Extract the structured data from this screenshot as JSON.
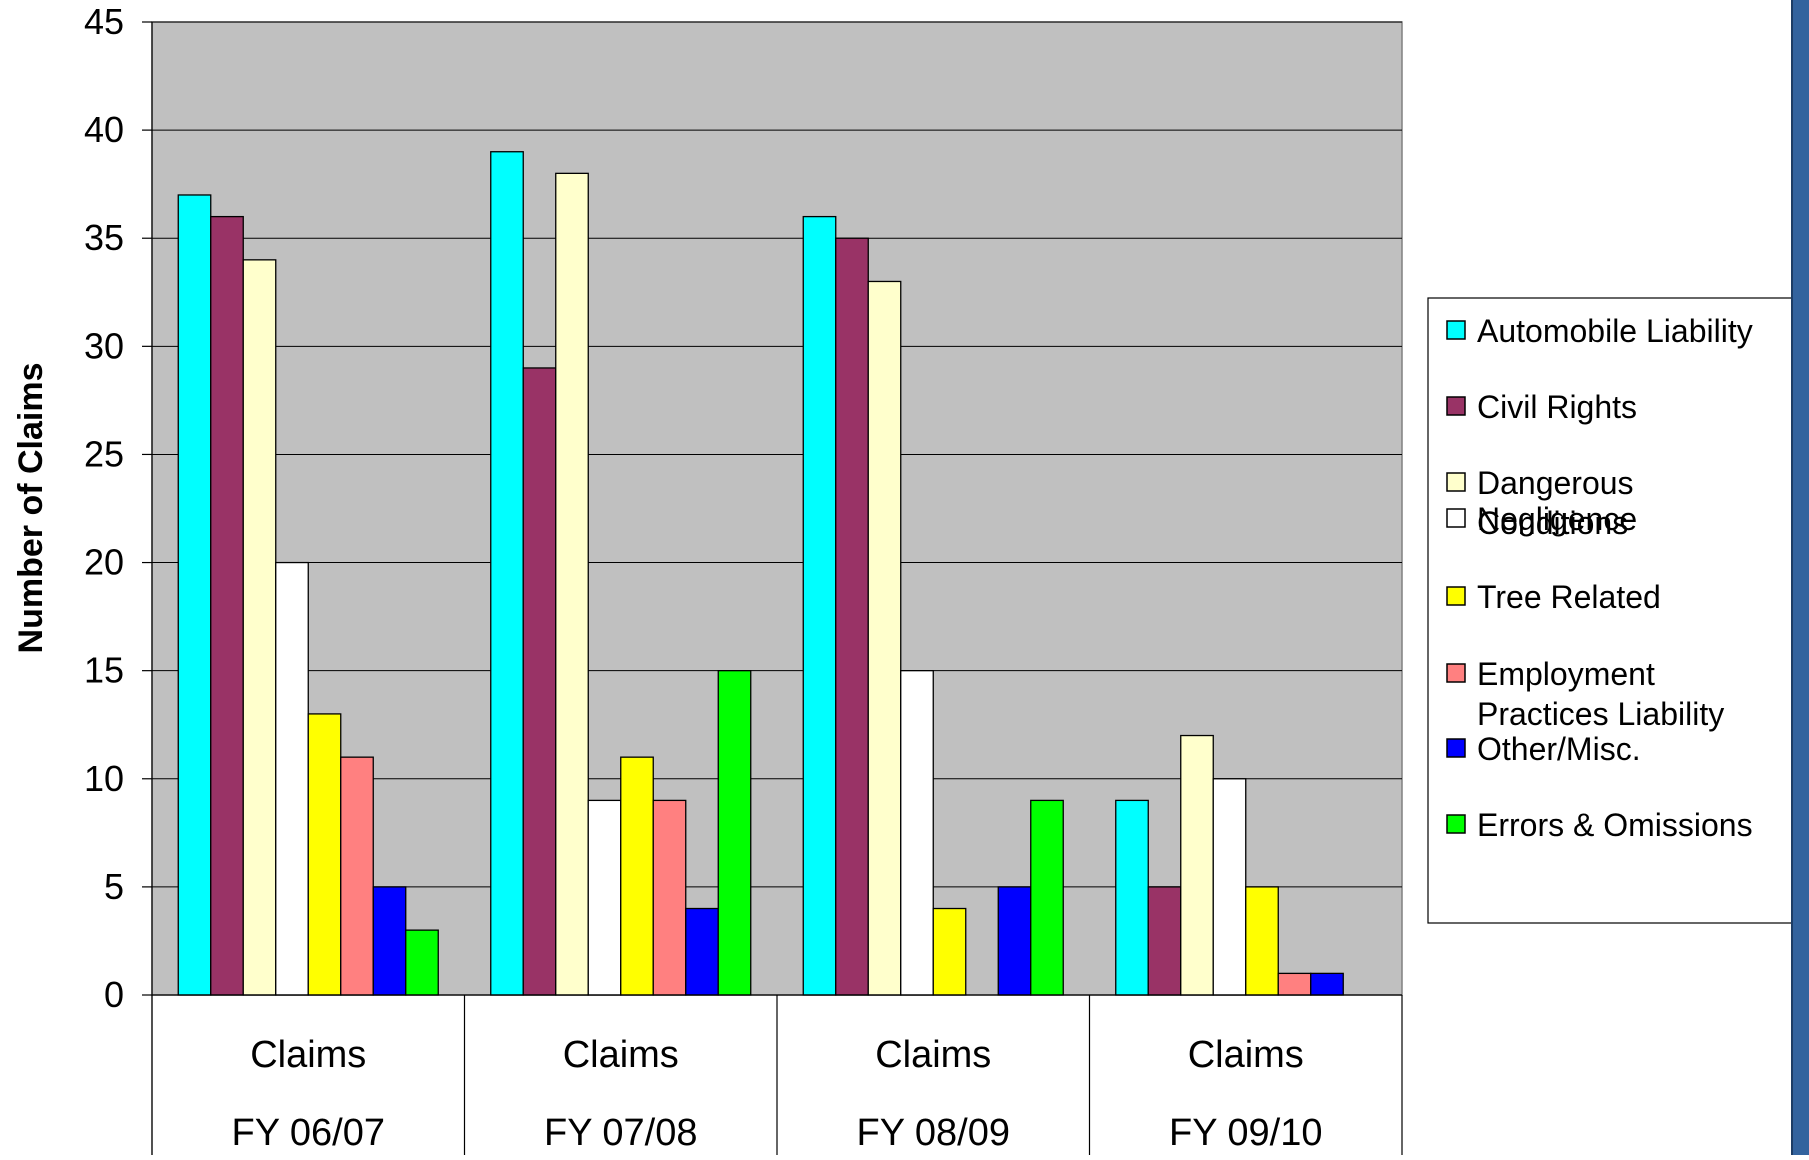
{
  "chart_data": {
    "type": "bar",
    "title": "",
    "ylabel": "Number of Claims",
    "xlabel": "",
    "ylim": [
      0,
      45
    ],
    "yticks": [
      0,
      5,
      10,
      15,
      20,
      25,
      30,
      35,
      40,
      45
    ],
    "grid": true,
    "legend_position": "right",
    "categories": [
      {
        "line1": "Claims",
        "line2": "FY 06/07"
      },
      {
        "line1": "Claims",
        "line2": "FY 07/08"
      },
      {
        "line1": "Claims",
        "line2": "FY 08/09"
      },
      {
        "line1": "Claims",
        "line2": "FY 09/10"
      }
    ],
    "series": [
      {
        "name": "Automobile Liability",
        "color": "#00ffff",
        "values": [
          37,
          39,
          36,
          9
        ]
      },
      {
        "name": "Civil Rights",
        "color": "#993366",
        "values": [
          36,
          29,
          35,
          5
        ]
      },
      {
        "name": "Dangerous Conditions",
        "color": "#ffffcc",
        "values": [
          34,
          38,
          33,
          12
        ]
      },
      {
        "name": "Negligence",
        "color": "#ffffff",
        "values": [
          20,
          9,
          15,
          10
        ]
      },
      {
        "name": "Tree Related",
        "color": "#ffff00",
        "values": [
          13,
          11,
          4,
          5
        ]
      },
      {
        "name": "Employment Practices Liability",
        "color": "#ff8080",
        "values": [
          11,
          9,
          0,
          1
        ]
      },
      {
        "name": "Other/Misc.",
        "color": "#0000ff",
        "values": [
          5,
          4,
          5,
          1
        ]
      },
      {
        "name": "Errors & Omissions",
        "color": "#00ff00",
        "values": [
          3,
          15,
          9,
          0
        ]
      }
    ],
    "legend_lines": [
      [
        "Automobile Liability"
      ],
      [
        "Civil Rights"
      ],
      [
        "Dangerous",
        "Conditions"
      ],
      [
        "Negligence"
      ],
      [
        "Tree Related"
      ],
      [
        "Employment",
        "Practices Liability"
      ],
      [
        "Other/Misc."
      ],
      [
        "Errors & Omissions"
      ]
    ],
    "colors": {
      "plot_background": "#c0c0c0",
      "frame": "#808080",
      "right_strip": "#33639e"
    }
  }
}
